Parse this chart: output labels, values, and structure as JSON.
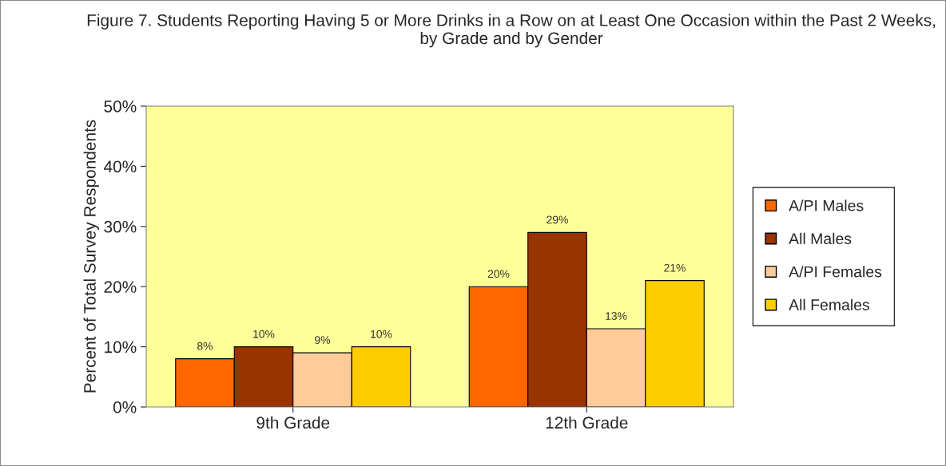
{
  "chart_data": {
    "type": "bar",
    "title": "Figure 7. Students Reporting Having 5 or More Drinks in a Row on at Least One Occasion within the Past 2 Weeks, by Grade and by Gender",
    "ylabel": "Percent of Total Survey Respondents",
    "categories": [
      "9th Grade",
      "12th Grade"
    ],
    "series": [
      {
        "name": "A/PI Males",
        "color": "#ff6600",
        "values": [
          8,
          20
        ],
        "value_labels": [
          "8%",
          "20%"
        ]
      },
      {
        "name": "All Males",
        "color": "#993300",
        "values": [
          10,
          29
        ],
        "value_labels": [
          "10%",
          "29%"
        ]
      },
      {
        "name": "A/PI Females",
        "color": "#ffcc99",
        "values": [
          9,
          13
        ],
        "value_labels": [
          "9%",
          "13%"
        ]
      },
      {
        "name": "All Females",
        "color": "#ffcc00",
        "values": [
          10,
          21
        ],
        "value_labels": [
          "10%",
          "21%"
        ]
      }
    ],
    "ylim": [
      0,
      50
    ],
    "yticks": [
      {
        "value": 0,
        "label": "0%"
      },
      {
        "value": 10,
        "label": "10%"
      },
      {
        "value": 20,
        "label": "20%"
      },
      {
        "value": 30,
        "label": "30%"
      },
      {
        "value": 40,
        "label": "40%"
      },
      {
        "value": 50,
        "label": "50%"
      }
    ],
    "grid": false,
    "legend": "right"
  }
}
